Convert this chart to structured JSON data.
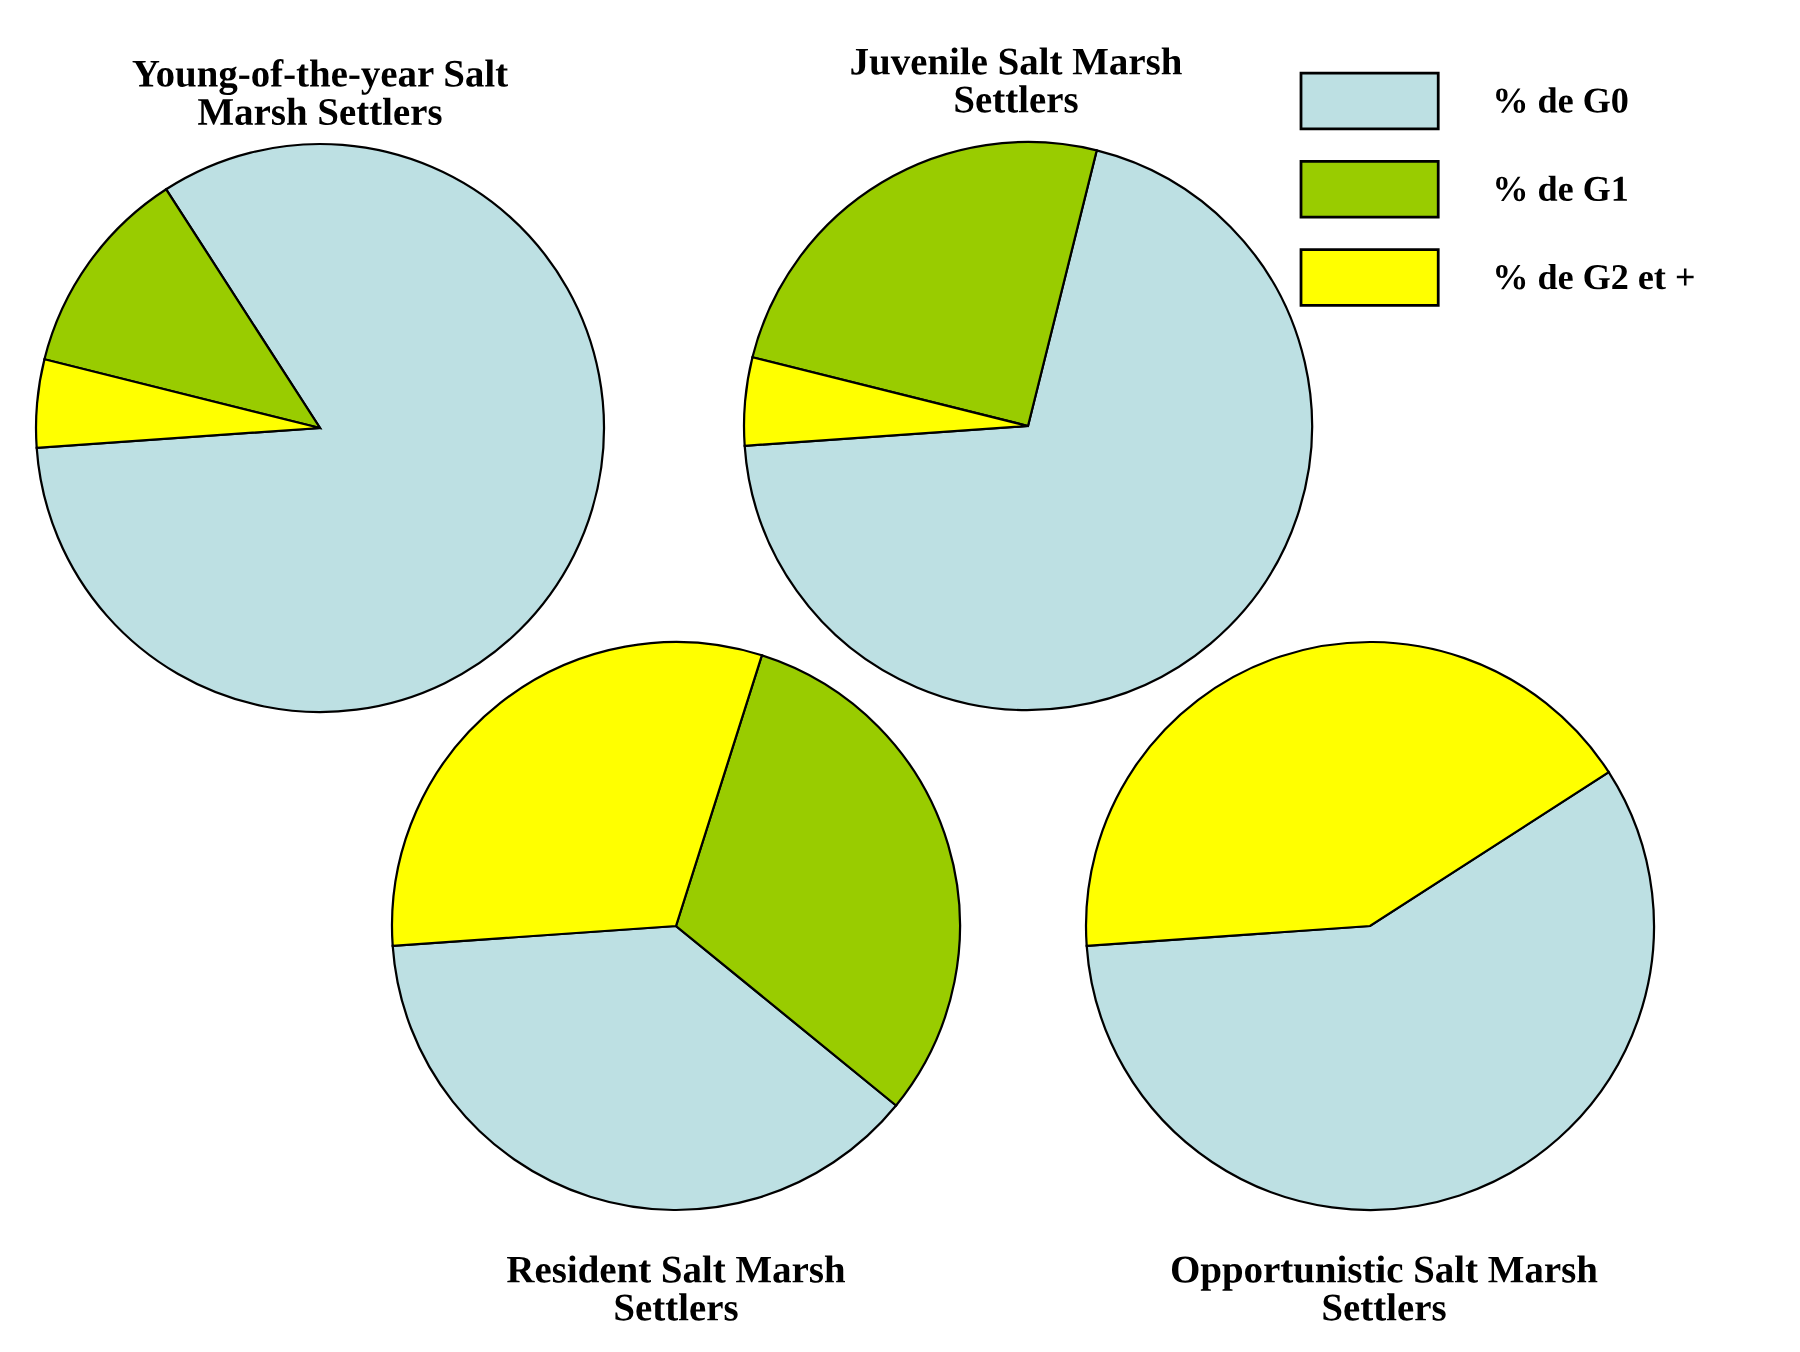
{
  "chart_data": [
    {
      "type": "pie",
      "title": "Young-of-the-year Salt Marsh Settlers",
      "categories": [
        "% de G0",
        "% de G1",
        "% de G2 et +"
      ],
      "values": [
        83,
        12,
        5
      ],
      "colors": [
        "#bde0e3",
        "#99cc00",
        "#ffff00"
      ],
      "legend": "top right"
    },
    {
      "type": "pie",
      "title": "Juvenile Salt Marsh Settlers",
      "categories": [
        null,
        null,
        null
      ],
      "values": [
        70,
        25,
        5
      ],
      "colors": [
        "#bde0e3",
        "#99cc00",
        "#ffff00"
      ]
    },
    {
      "type": "pie",
      "title": "Resident Salt Marsh Settlers",
      "categories": [
        null,
        null,
        null
      ],
      "values": [
        38,
        31,
        31
      ],
      "colors": [
        "#bde0e3",
        "#99cc00",
        "#ffff00"
      ]
    },
    {
      "type": "pie",
      "title": "Opportunistic Salt Marsh Settlers",
      "categories": [
        null,
        null,
        null
      ],
      "values": [
        58,
        0,
        42
      ],
      "colors": [
        "#bde0e3",
        "#99cc00",
        "#ffff00"
      ]
    }
  ]
}
